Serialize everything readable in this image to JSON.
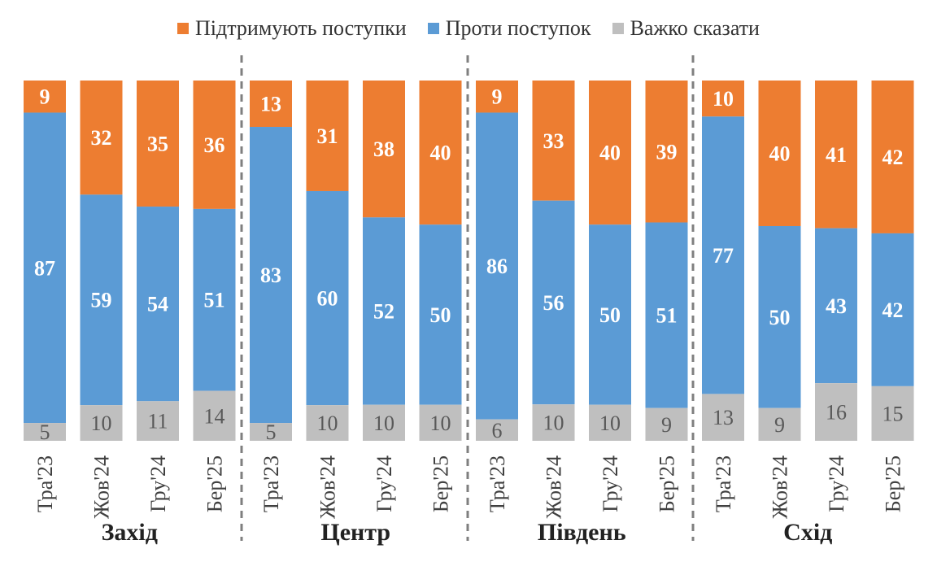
{
  "chart_data": {
    "type": "bar",
    "stacked": true,
    "normalized_to": 100,
    "legend": {
      "position": "top",
      "items": [
        {
          "key": "support",
          "name": "Підтримують поступки",
          "color": "#ED7D31"
        },
        {
          "key": "against",
          "name": "Проти поступок",
          "color": "#5B9BD5"
        },
        {
          "key": "unsure",
          "name": "Важко сказати",
          "color": "#BFBFBF"
        }
      ]
    },
    "groups": [
      {
        "name": "Захід",
        "categories": [
          "Тра'23",
          "Жов'24",
          "Гру'24",
          "Бер'25"
        ],
        "support": [
          9,
          32,
          35,
          36
        ],
        "against": [
          87,
          59,
          54,
          51
        ],
        "unsure": [
          5,
          10,
          11,
          14
        ]
      },
      {
        "name": "Центр",
        "categories": [
          "Тра'23",
          "Жов'24",
          "Гру'24",
          "Бер'25"
        ],
        "support": [
          13,
          31,
          38,
          40
        ],
        "against": [
          83,
          60,
          52,
          50
        ],
        "unsure": [
          5,
          10,
          10,
          10
        ]
      },
      {
        "name": "Південь",
        "categories": [
          "Тра'23",
          "Жов'24",
          "Гру'24",
          "Бер'25"
        ],
        "support": [
          9,
          33,
          40,
          39
        ],
        "against": [
          86,
          56,
          50,
          51
        ],
        "unsure": [
          6,
          10,
          10,
          9
        ]
      },
      {
        "name": "Схід",
        "categories": [
          "Тра'23",
          "Жов'24",
          "Гру'24",
          "Бер'25"
        ],
        "support": [
          10,
          40,
          41,
          42
        ],
        "against": [
          77,
          50,
          43,
          42
        ],
        "unsure": [
          13,
          9,
          16,
          15
        ]
      }
    ],
    "label_colors": {
      "on_color": "#FFFFFF",
      "on_gray": "#595959"
    },
    "separator_color": "#7F7F7F"
  }
}
